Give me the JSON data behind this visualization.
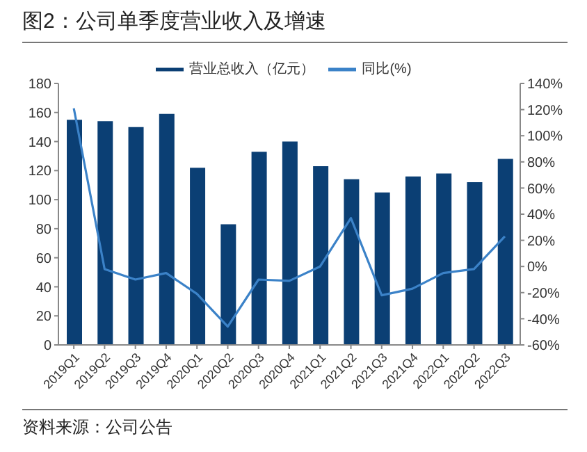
{
  "chart_data": {
    "type": "bar",
    "title": "图2：公司单季度营业收入及增速",
    "categories": [
      "2019Q1",
      "2019Q2",
      "2019Q3",
      "2019Q4",
      "2020Q1",
      "2020Q2",
      "2020Q3",
      "2020Q4",
      "2021Q1",
      "2021Q2",
      "2021Q3",
      "2021Q4",
      "2022Q1",
      "2022Q2",
      "2022Q3"
    ],
    "series": [
      {
        "name": "营业总收入（亿元）",
        "color": "#0b3f74",
        "values": [
          155,
          154,
          150,
          159,
          122,
          83,
          133,
          140,
          123,
          114,
          105,
          116,
          118,
          112,
          128
        ]
      },
      {
        "name": "同比(%)",
        "type": "line",
        "axis": "y2",
        "color": "#3b82c8",
        "values": [
          121,
          -2,
          -10,
          -5,
          -21,
          -46,
          -10,
          -11,
          0,
          37,
          -22,
          -17,
          -5,
          -2,
          23
        ]
      }
    ],
    "ylim": [
      0,
      180
    ],
    "yticks": [
      0,
      20,
      40,
      60,
      80,
      100,
      120,
      140,
      160,
      180
    ],
    "y2lim": [
      -60,
      140
    ],
    "y2ticks": [
      {
        "value": -60,
        "label": "-60%"
      },
      {
        "value": -40,
        "label": "-40%"
      },
      {
        "value": -20,
        "label": "-20%"
      },
      {
        "value": 0,
        "label": "0%"
      },
      {
        "value": 20,
        "label": "20%"
      },
      {
        "value": 40,
        "label": "40%"
      },
      {
        "value": 60,
        "label": "60%"
      },
      {
        "value": 80,
        "label": "80%"
      },
      {
        "value": 100,
        "label": "100%"
      },
      {
        "value": 120,
        "label": "120%"
      },
      {
        "value": 140,
        "label": "140%"
      }
    ],
    "grid": false,
    "legend": "top",
    "marker": "none",
    "line_style": "solid",
    "annotations": [
      "资料来源：公司公告"
    ]
  }
}
